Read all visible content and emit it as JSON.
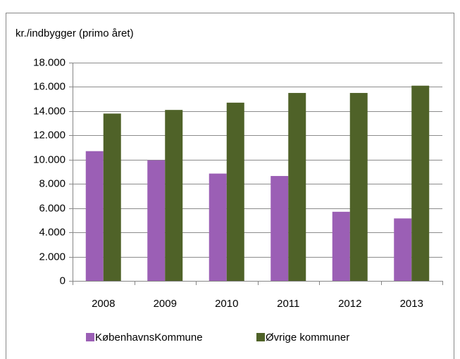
{
  "chart_data": {
    "type": "bar",
    "y_axis_label": "kr./indbygger (primo året)",
    "categories": [
      "2008",
      "2009",
      "2010",
      "2011",
      "2012",
      "2013"
    ],
    "series": [
      {
        "name": "KøbenhavnsKommune",
        "color": "#9b5fb5",
        "values": [
          10700,
          9950,
          8850,
          8650,
          5700,
          5150
        ]
      },
      {
        "name": "Øvrige kommuner",
        "color": "#4f6228",
        "values": [
          13800,
          14100,
          14700,
          15500,
          15500,
          16100
        ]
      }
    ],
    "ylim": [
      0,
      18000
    ],
    "yticks": [
      0,
      {
        "value": 2000,
        "label": "2.000"
      },
      {
        "value": 4000,
        "label": "4.000"
      },
      {
        "value": 6000,
        "label": "6.000"
      },
      {
        "value": 8000,
        "label": "8.000"
      },
      {
        "value": 10000,
        "label": "10.000"
      },
      {
        "value": 12000,
        "label": "12.000"
      },
      {
        "value": 14000,
        "label": "14.000"
      },
      {
        "value": 16000,
        "label": "16.000"
      },
      {
        "value": 18000,
        "label": "18.000"
      }
    ],
    "grid": true
  }
}
